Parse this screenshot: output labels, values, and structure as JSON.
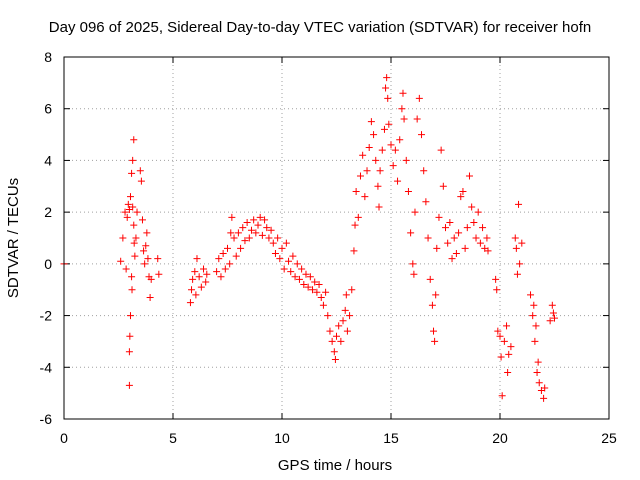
{
  "chart_data": {
    "type": "scatter",
    "title": "Day 096 of 2025, Sidereal Day-to-day VTEC variation (SDTVAR) for receiver hofn",
    "xlabel": "GPS time / hours",
    "ylabel": "SDTVAR / TECUs",
    "xlim": [
      0,
      25
    ],
    "ylim": [
      -6,
      8
    ],
    "xticks": [
      "0",
      "5",
      "10",
      "15",
      "20",
      "25"
    ],
    "yticks": [
      "-6",
      "-4",
      "-2",
      "0",
      "2",
      "4",
      "6",
      "8"
    ],
    "grid": true,
    "marker": "+",
    "color": "#ff0000",
    "series": [
      {
        "name": "SDTVAR",
        "points": [
          [
            0.0,
            0.0
          ],
          [
            2.6,
            0.1
          ],
          [
            2.7,
            1.0
          ],
          [
            2.8,
            2.0
          ],
          [
            2.85,
            -0.2
          ],
          [
            2.9,
            1.8
          ],
          [
            2.95,
            2.3
          ],
          [
            3.0,
            2.1
          ],
          [
            3.0,
            -3.4
          ],
          [
            3.0,
            -4.7
          ],
          [
            3.02,
            -2.8
          ],
          [
            3.05,
            -2.0
          ],
          [
            3.05,
            2.6
          ],
          [
            3.1,
            3.5
          ],
          [
            3.1,
            -0.5
          ],
          [
            3.12,
            -1.0
          ],
          [
            3.15,
            4.0
          ],
          [
            3.15,
            2.2
          ],
          [
            3.2,
            4.8
          ],
          [
            3.2,
            1.5
          ],
          [
            3.22,
            0.8
          ],
          [
            3.25,
            0.3
          ],
          [
            3.3,
            1.0
          ],
          [
            3.35,
            2.0
          ],
          [
            3.5,
            3.6
          ],
          [
            3.55,
            3.2
          ],
          [
            3.6,
            1.7
          ],
          [
            3.65,
            0.5
          ],
          [
            3.7,
            0.0
          ],
          [
            3.75,
            0.7
          ],
          [
            3.8,
            1.2
          ],
          [
            3.85,
            0.2
          ],
          [
            3.9,
            -0.5
          ],
          [
            3.95,
            -1.3
          ],
          [
            4.0,
            -0.6
          ],
          [
            4.3,
            0.2
          ],
          [
            4.35,
            -0.4
          ],
          [
            5.8,
            -1.5
          ],
          [
            5.85,
            -1.0
          ],
          [
            5.9,
            -0.6
          ],
          [
            6.0,
            -0.3
          ],
          [
            6.05,
            -1.2
          ],
          [
            6.1,
            0.2
          ],
          [
            6.2,
            -0.5
          ],
          [
            6.3,
            -0.9
          ],
          [
            6.4,
            -0.2
          ],
          [
            6.5,
            -0.7
          ],
          [
            6.55,
            -0.4
          ],
          [
            7.0,
            -0.3
          ],
          [
            7.1,
            0.2
          ],
          [
            7.2,
            -0.5
          ],
          [
            7.3,
            0.4
          ],
          [
            7.4,
            -0.2
          ],
          [
            7.5,
            0.6
          ],
          [
            7.6,
            0.0
          ],
          [
            7.65,
            1.2
          ],
          [
            7.7,
            1.8
          ],
          [
            7.8,
            1.0
          ],
          [
            7.9,
            0.3
          ],
          [
            8.0,
            1.2
          ],
          [
            8.1,
            0.6
          ],
          [
            8.2,
            1.4
          ],
          [
            8.3,
            0.9
          ],
          [
            8.4,
            1.6
          ],
          [
            8.5,
            1.0
          ],
          [
            8.6,
            1.3
          ],
          [
            8.7,
            1.7
          ],
          [
            8.8,
            1.2
          ],
          [
            8.9,
            1.5
          ],
          [
            9.0,
            1.8
          ],
          [
            9.1,
            1.1
          ],
          [
            9.2,
            1.7
          ],
          [
            9.3,
            1.4
          ],
          [
            9.4,
            1.0
          ],
          [
            9.5,
            1.3
          ],
          [
            9.6,
            0.8
          ],
          [
            9.7,
            0.4
          ],
          [
            9.8,
            1.0
          ],
          [
            9.9,
            0.2
          ],
          [
            10.0,
            0.6
          ],
          [
            10.1,
            -0.2
          ],
          [
            10.2,
            0.8
          ],
          [
            10.3,
            0.1
          ],
          [
            10.4,
            -0.3
          ],
          [
            10.5,
            0.3
          ],
          [
            10.6,
            -0.5
          ],
          [
            10.7,
            0.0
          ],
          [
            10.8,
            -0.6
          ],
          [
            10.9,
            -0.2
          ],
          [
            11.0,
            -0.8
          ],
          [
            11.1,
            -0.4
          ],
          [
            11.2,
            -0.9
          ],
          [
            11.3,
            -0.5
          ],
          [
            11.4,
            -1.0
          ],
          [
            11.5,
            -0.7
          ],
          [
            11.6,
            -1.1
          ],
          [
            11.7,
            -0.8
          ],
          [
            11.8,
            -1.3
          ],
          [
            11.9,
            -1.6
          ],
          [
            12.0,
            -1.1
          ],
          [
            12.1,
            -2.0
          ],
          [
            12.2,
            -2.6
          ],
          [
            12.3,
            -3.0
          ],
          [
            12.4,
            -3.4
          ],
          [
            12.45,
            -3.7
          ],
          [
            12.5,
            -2.8
          ],
          [
            12.6,
            -2.4
          ],
          [
            12.7,
            -3.0
          ],
          [
            12.8,
            -2.2
          ],
          [
            12.9,
            -1.8
          ],
          [
            12.95,
            -1.2
          ],
          [
            13.0,
            -2.6
          ],
          [
            13.1,
            -2.0
          ],
          [
            13.2,
            -1.0
          ],
          [
            13.3,
            0.5
          ],
          [
            13.35,
            1.5
          ],
          [
            13.4,
            2.8
          ],
          [
            13.5,
            1.8
          ],
          [
            13.6,
            3.4
          ],
          [
            13.7,
            4.2
          ],
          [
            13.8,
            2.6
          ],
          [
            13.9,
            3.6
          ],
          [
            14.0,
            4.5
          ],
          [
            14.1,
            5.5
          ],
          [
            14.2,
            5.0
          ],
          [
            14.3,
            4.0
          ],
          [
            14.4,
            3.0
          ],
          [
            14.45,
            2.2
          ],
          [
            14.5,
            3.6
          ],
          [
            14.6,
            4.4
          ],
          [
            14.7,
            5.2
          ],
          [
            14.75,
            6.8
          ],
          [
            14.8,
            7.2
          ],
          [
            14.85,
            6.4
          ],
          [
            14.9,
            5.4
          ],
          [
            15.0,
            4.6
          ],
          [
            15.1,
            3.8
          ],
          [
            15.2,
            4.4
          ],
          [
            15.3,
            3.2
          ],
          [
            15.4,
            4.8
          ],
          [
            15.5,
            6.0
          ],
          [
            15.55,
            6.6
          ],
          [
            15.6,
            5.6
          ],
          [
            15.7,
            4.0
          ],
          [
            15.8,
            2.8
          ],
          [
            15.9,
            1.2
          ],
          [
            16.0,
            0.0
          ],
          [
            16.05,
            -0.4
          ],
          [
            16.1,
            2.0
          ],
          [
            16.2,
            5.6
          ],
          [
            16.3,
            6.4
          ],
          [
            16.4,
            5.0
          ],
          [
            16.5,
            3.6
          ],
          [
            16.6,
            2.4
          ],
          [
            16.7,
            1.0
          ],
          [
            16.8,
            -0.6
          ],
          [
            16.9,
            -1.6
          ],
          [
            16.95,
            -2.6
          ],
          [
            17.0,
            -3.0
          ],
          [
            17.05,
            -1.2
          ],
          [
            17.1,
            0.6
          ],
          [
            17.2,
            1.8
          ],
          [
            17.3,
            4.4
          ],
          [
            17.4,
            3.0
          ],
          [
            17.5,
            1.4
          ],
          [
            17.6,
            0.8
          ],
          [
            17.7,
            1.6
          ],
          [
            17.8,
            0.2
          ],
          [
            17.9,
            1.0
          ],
          [
            18.0,
            0.4
          ],
          [
            18.1,
            1.2
          ],
          [
            18.2,
            2.6
          ],
          [
            18.3,
            2.8
          ],
          [
            18.4,
            0.6
          ],
          [
            18.5,
            1.4
          ],
          [
            18.6,
            3.4
          ],
          [
            18.7,
            2.2
          ],
          [
            18.8,
            1.6
          ],
          [
            18.9,
            1.0
          ],
          [
            19.0,
            2.0
          ],
          [
            19.1,
            0.8
          ],
          [
            19.2,
            1.4
          ],
          [
            19.3,
            0.6
          ],
          [
            19.4,
            1.0
          ],
          [
            19.45,
            0.5
          ],
          [
            19.8,
            -0.6
          ],
          [
            19.85,
            -1.0
          ],
          [
            19.9,
            -2.6
          ],
          [
            20.0,
            -2.8
          ],
          [
            20.05,
            -3.6
          ],
          [
            20.1,
            -5.1
          ],
          [
            20.2,
            -3.0
          ],
          [
            20.3,
            -2.4
          ],
          [
            20.35,
            -4.2
          ],
          [
            20.4,
            -3.5
          ],
          [
            20.5,
            -3.2
          ],
          [
            20.7,
            1.0
          ],
          [
            20.75,
            0.6
          ],
          [
            20.8,
            -0.4
          ],
          [
            20.85,
            2.3
          ],
          [
            20.9,
            0.0
          ],
          [
            21.0,
            0.8
          ],
          [
            21.4,
            -1.2
          ],
          [
            21.5,
            -2.0
          ],
          [
            21.55,
            -1.6
          ],
          [
            21.6,
            -3.0
          ],
          [
            21.65,
            -2.4
          ],
          [
            21.7,
            -4.2
          ],
          [
            21.75,
            -3.8
          ],
          [
            21.8,
            -4.6
          ],
          [
            21.9,
            -4.9
          ],
          [
            22.0,
            -5.2
          ],
          [
            22.05,
            -4.8
          ],
          [
            22.3,
            -2.2
          ],
          [
            22.4,
            -1.6
          ],
          [
            22.45,
            -1.9
          ],
          [
            22.5,
            -2.1
          ]
        ]
      }
    ]
  }
}
